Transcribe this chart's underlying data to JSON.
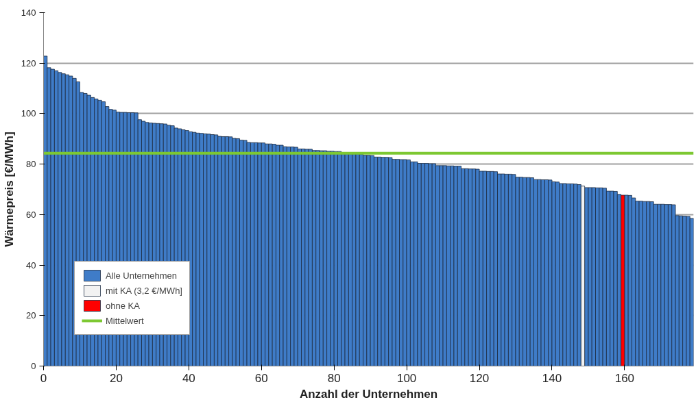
{
  "chart_data": {
    "type": "bar",
    "xlabel": "Anzahl der Unternehmen",
    "ylabel": "Wärmepreis [€/MWh]",
    "xlim": [
      0,
      179
    ],
    "ylim": [
      0,
      140
    ],
    "xticks": [
      0,
      20,
      40,
      60,
      80,
      100,
      120,
      140,
      160
    ],
    "yticks": [
      0,
      20,
      40,
      60,
      80,
      100,
      120,
      140
    ],
    "grid": "y",
    "legend": "bottom left",
    "series": [
      {
        "name": "Alle Unternehmen",
        "color": "#3f7cc8",
        "x": [
          0.5,
          1.5,
          2.5,
          3.5,
          4.5,
          5.5,
          6.5,
          7.5,
          8.5,
          9.5,
          10.5,
          11.5,
          12.5,
          13.5,
          14.5,
          15.5,
          16.5,
          17.5,
          18.5,
          19.5,
          20.5,
          21.5,
          22.5,
          23.5,
          24.5,
          25.5,
          26.5,
          27.5,
          28.5,
          29.5,
          30.5,
          31.5,
          32.5,
          33.5,
          34.5,
          35.5,
          36.5,
          37.5,
          38.5,
          39.5,
          40.5,
          41.5,
          42.5,
          43.5,
          44.5,
          45.5,
          46.5,
          47.5,
          48.5,
          49.5,
          50.5,
          51.5,
          52.5,
          53.5,
          54.5,
          55.5,
          56.5,
          57.5,
          58.5,
          59.5,
          60.5,
          61.5,
          62.5,
          63.5,
          64.5,
          65.5,
          66.5,
          67.5,
          68.5,
          69.5,
          70.5,
          71.5,
          72.5,
          73.5,
          74.5,
          75.5,
          76.5,
          77.5,
          78.5,
          79.5,
          80.5,
          81.5,
          82.5,
          83.5,
          84.5,
          85.5,
          86.5,
          87.5,
          88.5,
          89.5,
          90.5,
          91.5,
          92.5,
          93.5,
          94.5,
          95.5,
          96.5,
          97.5,
          98.5,
          99.5,
          100.5,
          101.5,
          102.5,
          103.5,
          104.5,
          105.5,
          106.5,
          107.5,
          108.5,
          109.5,
          110.5,
          111.5,
          112.5,
          113.5,
          114.5,
          115.5,
          116.5,
          117.5,
          118.5,
          119.5,
          120.5,
          121.5,
          122.5,
          123.5,
          124.5,
          125.5,
          126.5,
          127.5,
          128.5,
          129.5,
          130.5,
          131.5,
          132.5,
          133.5,
          134.5,
          135.5,
          136.5,
          137.5,
          138.5,
          139.5,
          140.5,
          141.5,
          142.5,
          143.5,
          144.5,
          145.5,
          146.5,
          147.5,
          149.5,
          150.5,
          151.5,
          152.5,
          153.5,
          154.5,
          155.5,
          156.5,
          157.5,
          158.5,
          160.5,
          161.5,
          162.5,
          163.5,
          164.5,
          165.5,
          166.5,
          167.5,
          168.5,
          169.5,
          170.5,
          171.5,
          172.5,
          173.5,
          174.5,
          175.5,
          176.5,
          177.5,
          178.5
        ],
        "values": [
          122.8,
          118.2,
          117.6,
          117.0,
          116.3,
          115.8,
          115.4,
          114.9,
          114.0,
          112.6,
          108.4,
          108.0,
          107.3,
          106.4,
          105.8,
          105.3,
          104.7,
          102.8,
          101.7,
          101.4,
          100.6,
          100.5,
          100.5,
          100.4,
          100.4,
          100.3,
          97.6,
          97.0,
          96.5,
          96.3,
          96.2,
          96.1,
          96.0,
          95.9,
          95.4,
          95.2,
          94.3,
          94.0,
          93.6,
          93.3,
          92.8,
          92.6,
          92.3,
          92.2,
          92.0,
          91.9,
          91.7,
          91.6,
          91.0,
          90.9,
          90.9,
          90.8,
          90.2,
          90.1,
          89.5,
          89.4,
          88.6,
          88.5,
          88.5,
          88.4,
          88.4,
          88.0,
          88.0,
          87.9,
          87.5,
          87.5,
          86.9,
          86.8,
          86.8,
          86.7,
          86.0,
          86.0,
          85.9,
          85.9,
          85.4,
          85.4,
          85.3,
          85.3,
          85.1,
          85.1,
          85.0,
          85.0,
          84.3,
          84.3,
          84.2,
          84.2,
          84.1,
          84.0,
          83.5,
          83.5,
          83.4,
          82.8,
          82.8,
          82.7,
          82.7,
          82.6,
          81.9,
          81.9,
          81.8,
          81.8,
          81.7,
          80.9,
          80.9,
          80.3,
          80.3,
          80.3,
          80.2,
          80.2,
          79.4,
          79.4,
          79.4,
          79.3,
          79.3,
          79.2,
          79.2,
          78.2,
          78.2,
          78.1,
          78.1,
          78.0,
          77.2,
          77.2,
          77.1,
          77.1,
          77.0,
          76.1,
          76.1,
          76.0,
          76.0,
          75.9,
          74.8,
          74.8,
          74.7,
          74.7,
          74.6,
          73.9,
          73.9,
          73.8,
          73.8,
          73.7,
          73.0,
          72.9,
          72.3,
          72.3,
          72.2,
          72.2,
          72.1,
          71.9,
          70.7,
          70.7,
          70.7,
          70.6,
          70.6,
          70.5,
          69.3,
          69.3,
          69.2,
          68.0,
          67.7,
          67.6,
          66.6,
          65.3,
          65.3,
          65.2,
          65.2,
          65.1,
          64.1,
          64.1,
          64.1,
          64.0,
          64.0,
          63.9,
          59.6,
          59.5,
          59.4,
          59.3,
          58.5
        ]
      },
      {
        "name": "mit KA (3,2 €/MWh]",
        "color": "#f2f2f2",
        "x": [
          148.5
        ],
        "values": [
          71.3
        ]
      },
      {
        "name": "ohne KA",
        "color": "#ff0000",
        "x": [
          159.5
        ],
        "values": [
          67.7
        ]
      }
    ],
    "ref_lines": [
      {
        "axis": "y",
        "value": 84.3,
        "label": "Mittelwert",
        "color": "#7dc832"
      }
    ]
  }
}
